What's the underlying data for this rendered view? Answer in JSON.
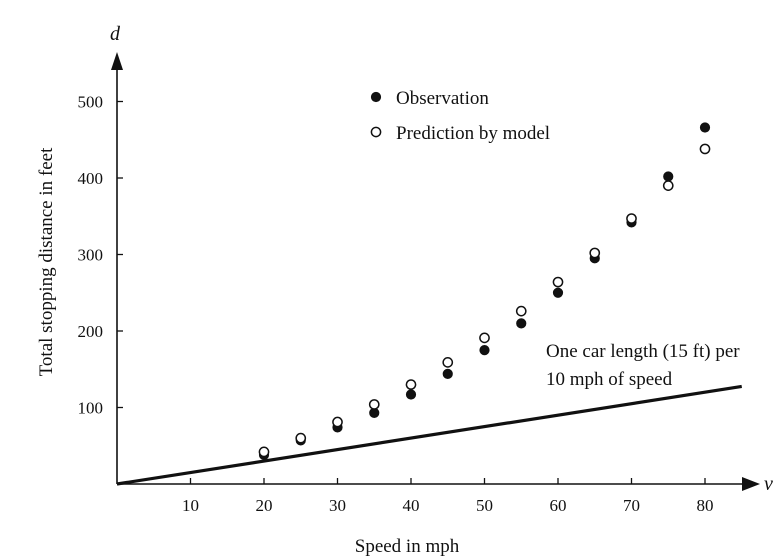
{
  "chart_data": {
    "type": "scatter",
    "title": "",
    "xlabel": "Speed in mph",
    "ylabel": "Total stopping distance in feet",
    "x_axis_variable": "v",
    "y_axis_variable": "d",
    "xlim": [
      0,
      85
    ],
    "ylim": [
      0,
      520
    ],
    "x_ticks": [
      10,
      20,
      30,
      40,
      50,
      60,
      70,
      80
    ],
    "y_ticks": [
      100,
      200,
      300,
      400,
      500
    ],
    "grid": false,
    "legend_position": "top-center",
    "series": [
      {
        "name": "Observation",
        "marker": "filled-circle",
        "x": [
          20,
          25,
          30,
          35,
          40,
          45,
          50,
          55,
          60,
          65,
          70,
          75,
          80
        ],
        "y": [
          38,
          57,
          74,
          93,
          117,
          144,
          175,
          210,
          250,
          295,
          342,
          402,
          466
        ]
      },
      {
        "name": "Prediction by model",
        "marker": "open-circle",
        "x": [
          20,
          25,
          30,
          35,
          40,
          45,
          50,
          55,
          60,
          65,
          70,
          75,
          80
        ],
        "y": [
          42,
          60,
          81,
          104,
          130,
          159,
          191,
          226,
          264,
          302,
          347,
          390,
          438
        ]
      }
    ],
    "reference_line": {
      "label_lines": [
        "One car length (15 ft) per",
        "10 mph of speed"
      ],
      "x": [
        0,
        85
      ],
      "y": [
        0,
        127.5
      ]
    },
    "colors": {
      "ink": "#111111",
      "background": "#ffffff"
    }
  }
}
